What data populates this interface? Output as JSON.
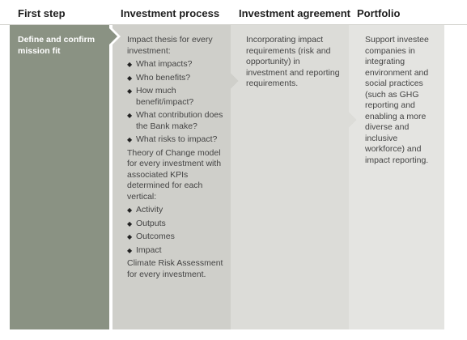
{
  "headers": [
    "First step",
    "Investment process",
    "Investment agreement",
    "Portfolio"
  ],
  "colors": {
    "step1": "#8a9283",
    "step2": "#cfcfca",
    "step3": "#dcdcd8",
    "step4": "#e4e4e1",
    "rule": "#cfcfca"
  },
  "first_step": {
    "text": "Define and confirm mission fit"
  },
  "investment_process": {
    "intro": "Impact thesis for every investment:",
    "questions": [
      "What impacts?",
      "Who benefits?",
      "How much benefit/impact?",
      "What contribution does the Bank make?",
      "What risks to impact?"
    ],
    "toc": "Theory of Change model for every investment with associated KPIs determined for each vertical:",
    "toc_items": [
      "Activity",
      "Outputs",
      "Outcomes",
      "Impact"
    ],
    "climate": "Climate Risk Assessment for every investment."
  },
  "investment_agreement": {
    "text": "Incorporating impact requirements (risk and opportunity) in investment and reporting requirements."
  },
  "portfolio": {
    "text": "Support investee companies in integrating environment and social practices (such as GHG reporting and enabling a more diverse and inclusive workforce) and impact reporting."
  }
}
